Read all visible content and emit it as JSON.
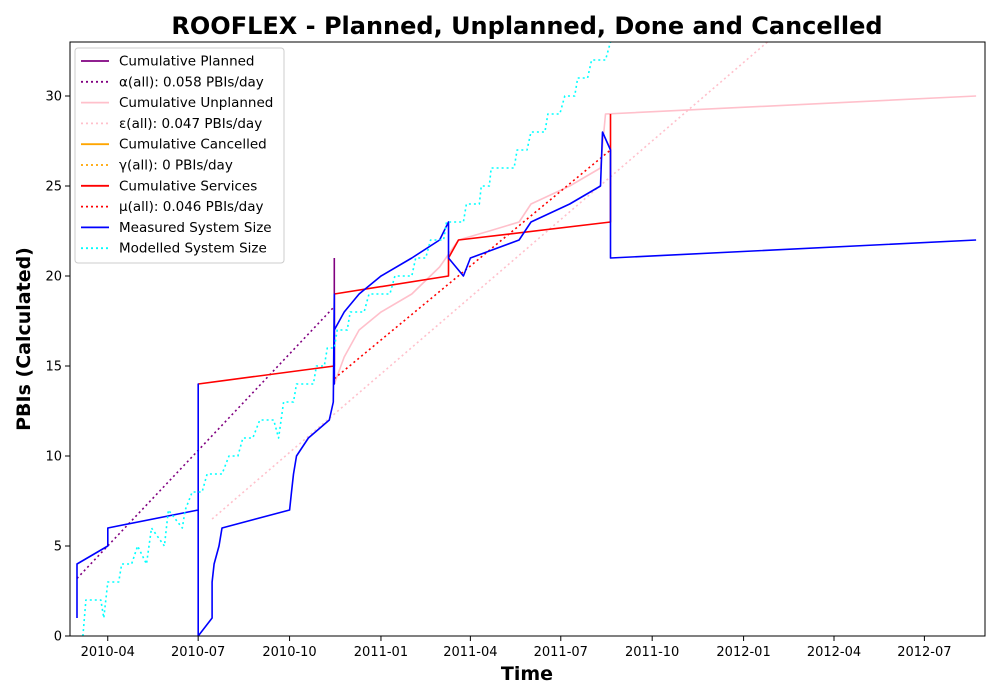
{
  "chart_data": {
    "type": "line",
    "title": "ROOFLEX - Planned, Unplanned, Done  and Cancelled",
    "xlabel": "Time",
    "ylabel": "PBIs (Calculated)",
    "xlim": [
      "2010-02-22",
      "2012-08-31"
    ],
    "ylim": [
      0,
      33
    ],
    "grid": false,
    "legend_placement": "top-left",
    "x_ticks": [
      {
        "label": "2010-04",
        "date": "2010-04-01"
      },
      {
        "label": "2010-07",
        "date": "2010-07-01"
      },
      {
        "label": "2010-10",
        "date": "2010-10-01"
      },
      {
        "label": "2011-01",
        "date": "2011-01-01"
      },
      {
        "label": "2011-04",
        "date": "2011-04-01"
      },
      {
        "label": "2011-07",
        "date": "2011-07-01"
      },
      {
        "label": "2011-10",
        "date": "2011-10-01"
      },
      {
        "label": "2012-01",
        "date": "2012-01-01"
      },
      {
        "label": "2012-04",
        "date": "2012-04-01"
      },
      {
        "label": "2012-07",
        "date": "2012-07-01"
      }
    ],
    "y_ticks": [
      0,
      5,
      10,
      15,
      20,
      25,
      30
    ],
    "series": [
      {
        "name": "Cumulative Planned",
        "color": "#800080",
        "dash": "solid",
        "points": [
          [
            "2010-11-15",
            14
          ],
          [
            "2010-11-15",
            21
          ]
        ]
      },
      {
        "name": "α(all): 0.058 PBIs/day",
        "color": "#800080",
        "dash": "dotted",
        "points": [
          [
            "2010-03-01",
            3.2
          ],
          [
            "2010-11-15",
            18.3
          ]
        ]
      },
      {
        "name": "Cumulative Unplanned",
        "color": "#ffc0cb",
        "dash": "solid",
        "points": [
          [
            "2010-11-15",
            14
          ],
          [
            "2010-11-25",
            15.5
          ],
          [
            "2010-12-10",
            17
          ],
          [
            "2011-01-01",
            18
          ],
          [
            "2011-02-01",
            19
          ],
          [
            "2011-03-01",
            20.5
          ],
          [
            "2011-03-20",
            22
          ],
          [
            "2011-04-20",
            22.5
          ],
          [
            "2011-05-20",
            23
          ],
          [
            "2011-06-01",
            24
          ],
          [
            "2011-07-10",
            25
          ],
          [
            "2011-08-10",
            26
          ],
          [
            "2011-08-15",
            29
          ],
          [
            "2012-08-22",
            30
          ]
        ]
      },
      {
        "name": "ε(all): 0.047 PBIs/day",
        "color": "#ffc0cb",
        "dash": "dotted",
        "points": [
          [
            "2010-07-15",
            6.5
          ],
          [
            "2012-01-25",
            33
          ]
        ]
      },
      {
        "name": "Cumulative Cancelled",
        "color": "#ffa500",
        "dash": "solid",
        "points": []
      },
      {
        "name": "γ(all): 0 PBIs/day",
        "color": "#ffa500",
        "dash": "dotted",
        "points": []
      },
      {
        "name": "Cumulative Services",
        "color": "#ff0000",
        "dash": "solid",
        "points": [
          [
            "2010-07-01",
            14
          ],
          [
            "2010-11-15",
            15
          ],
          [
            "2010-11-15",
            19
          ],
          [
            "2011-03-10",
            20
          ],
          [
            "2011-03-10",
            21
          ],
          [
            "2011-03-20",
            22
          ],
          [
            "2011-08-20",
            23
          ],
          [
            "2011-08-20",
            29
          ]
        ]
      },
      {
        "name": "μ(all): 0.046 PBIs/day",
        "color": "#ff0000",
        "dash": "dotted",
        "points": [
          [
            "2010-11-15",
            14.3
          ],
          [
            "2011-08-20",
            27
          ]
        ]
      },
      {
        "name": "Measured System Size",
        "color": "#0000ff",
        "dash": "solid",
        "points": [
          [
            "2010-03-01",
            1
          ],
          [
            "2010-03-01",
            4
          ],
          [
            "2010-04-01",
            5
          ],
          [
            "2010-04-01",
            6
          ],
          [
            "2010-07-01",
            7
          ],
          [
            "2010-07-01",
            14
          ],
          [
            "2010-07-01",
            0
          ],
          [
            "2010-07-15",
            1
          ],
          [
            "2010-07-15",
            3
          ],
          [
            "2010-07-17",
            4
          ],
          [
            "2010-07-22",
            5
          ],
          [
            "2010-07-25",
            6
          ],
          [
            "2010-10-01",
            7
          ],
          [
            "2010-10-03",
            8
          ],
          [
            "2010-10-05",
            9
          ],
          [
            "2010-10-08",
            10
          ],
          [
            "2010-10-20",
            11
          ],
          [
            "2010-11-10",
            12
          ],
          [
            "2010-11-14",
            13
          ],
          [
            "2010-11-15",
            19
          ],
          [
            "2010-11-15",
            14
          ],
          [
            "2010-11-15",
            17
          ],
          [
            "2010-11-25",
            18
          ],
          [
            "2010-12-10",
            19
          ],
          [
            "2011-01-01",
            20
          ],
          [
            "2011-02-01",
            21
          ],
          [
            "2011-03-01",
            22
          ],
          [
            "2011-03-10",
            23
          ],
          [
            "2011-03-10",
            21
          ],
          [
            "2011-03-25",
            20
          ],
          [
            "2011-04-01",
            21
          ],
          [
            "2011-05-20",
            22
          ],
          [
            "2011-06-01",
            23
          ],
          [
            "2011-07-10",
            24
          ],
          [
            "2011-08-10",
            25
          ],
          [
            "2011-08-12",
            28
          ],
          [
            "2011-08-20",
            27
          ],
          [
            "2011-08-20",
            21
          ],
          [
            "2012-08-22",
            22
          ]
        ]
      },
      {
        "name": "Modelled System Size",
        "color": "#00ffff",
        "dash": "dotted",
        "points": [
          [
            "2010-03-07",
            0
          ],
          [
            "2010-03-10",
            2
          ],
          [
            "2010-03-25",
            2
          ],
          [
            "2010-03-28",
            1
          ],
          [
            "2010-04-01",
            3
          ],
          [
            "2010-04-12",
            3
          ],
          [
            "2010-04-15",
            4
          ],
          [
            "2010-04-25",
            4
          ],
          [
            "2010-05-01",
            5
          ],
          [
            "2010-05-10",
            4
          ],
          [
            "2010-05-15",
            6
          ],
          [
            "2010-05-28",
            5
          ],
          [
            "2010-06-01",
            7
          ],
          [
            "2010-06-15",
            6
          ],
          [
            "2010-06-18",
            7
          ],
          [
            "2010-06-25",
            8
          ],
          [
            "2010-07-05",
            8
          ],
          [
            "2010-07-10",
            9
          ],
          [
            "2010-07-25",
            9
          ],
          [
            "2010-08-01",
            10
          ],
          [
            "2010-08-10",
            10
          ],
          [
            "2010-08-15",
            11
          ],
          [
            "2010-08-25",
            11
          ],
          [
            "2010-09-01",
            12
          ],
          [
            "2010-09-15",
            12
          ],
          [
            "2010-09-20",
            11
          ],
          [
            "2010-09-25",
            13
          ],
          [
            "2010-10-05",
            13
          ],
          [
            "2010-10-08",
            14
          ],
          [
            "2010-10-25",
            14
          ],
          [
            "2010-10-28",
            15
          ],
          [
            "2010-11-05",
            15
          ],
          [
            "2010-11-08",
            16
          ],
          [
            "2010-11-15",
            16
          ],
          [
            "2010-11-18",
            17
          ],
          [
            "2010-11-28",
            17
          ],
          [
            "2010-12-01",
            18
          ],
          [
            "2010-12-15",
            18
          ],
          [
            "2010-12-20",
            19
          ],
          [
            "2011-01-10",
            19
          ],
          [
            "2011-01-15",
            20
          ],
          [
            "2011-02-01",
            20
          ],
          [
            "2011-02-05",
            21
          ],
          [
            "2011-02-15",
            21
          ],
          [
            "2011-02-20",
            22
          ],
          [
            "2011-03-05",
            22
          ],
          [
            "2011-03-08",
            23
          ],
          [
            "2011-03-25",
            23
          ],
          [
            "2011-03-28",
            24
          ],
          [
            "2011-04-10",
            24
          ],
          [
            "2011-04-12",
            25
          ],
          [
            "2011-04-20",
            25
          ],
          [
            "2011-04-22",
            26
          ],
          [
            "2011-05-15",
            26
          ],
          [
            "2011-05-18",
            27
          ],
          [
            "2011-05-28",
            27
          ],
          [
            "2011-06-01",
            28
          ],
          [
            "2011-06-15",
            28
          ],
          [
            "2011-06-18",
            29
          ],
          [
            "2011-06-30",
            29
          ],
          [
            "2011-07-05",
            30
          ],
          [
            "2011-07-15",
            30
          ],
          [
            "2011-07-18",
            31
          ],
          [
            "2011-07-28",
            31
          ],
          [
            "2011-08-01",
            32
          ],
          [
            "2011-08-15",
            32
          ],
          [
            "2011-08-20",
            33
          ]
        ]
      }
    ]
  }
}
